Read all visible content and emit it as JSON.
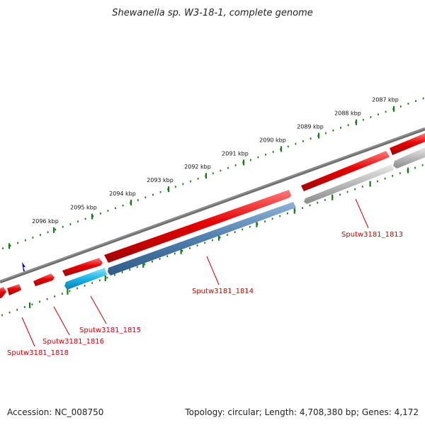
{
  "title": "Shewanella sp. W3-18-1, complete genome",
  "scale": {
    "ticks": [
      "2087 kbp",
      "2088 kbp",
      "2089 kbp",
      "2090 kbp",
      "2091 kbp",
      "2092 kbp",
      "2093 kbp",
      "2094 kbp",
      "2095 kbp",
      "2096 kbp"
    ]
  },
  "genes": [
    {
      "label": "Sputw3181_1813",
      "color": "#b8b8b8"
    },
    {
      "label": "Sputw3181_1814",
      "color": "#4f7fae"
    },
    {
      "label": "Sputw3181_1815",
      "color": "#1ab4e6"
    },
    {
      "label": "Sputw3181_1816",
      "color": "#e60000"
    },
    {
      "label": "Sputw3181_1818",
      "color": "#e60000"
    }
  ],
  "colors": {
    "backbone": "#808080",
    "forward_gene": "#e60000",
    "tick": "#1a7a1a",
    "label": "#cc0000",
    "marker": "#0000cc"
  },
  "footer": {
    "accession": "Accession: NC_008750",
    "topology": "Topology: circular; Length: 4,708,380 bp; Genes: 4,172"
  }
}
